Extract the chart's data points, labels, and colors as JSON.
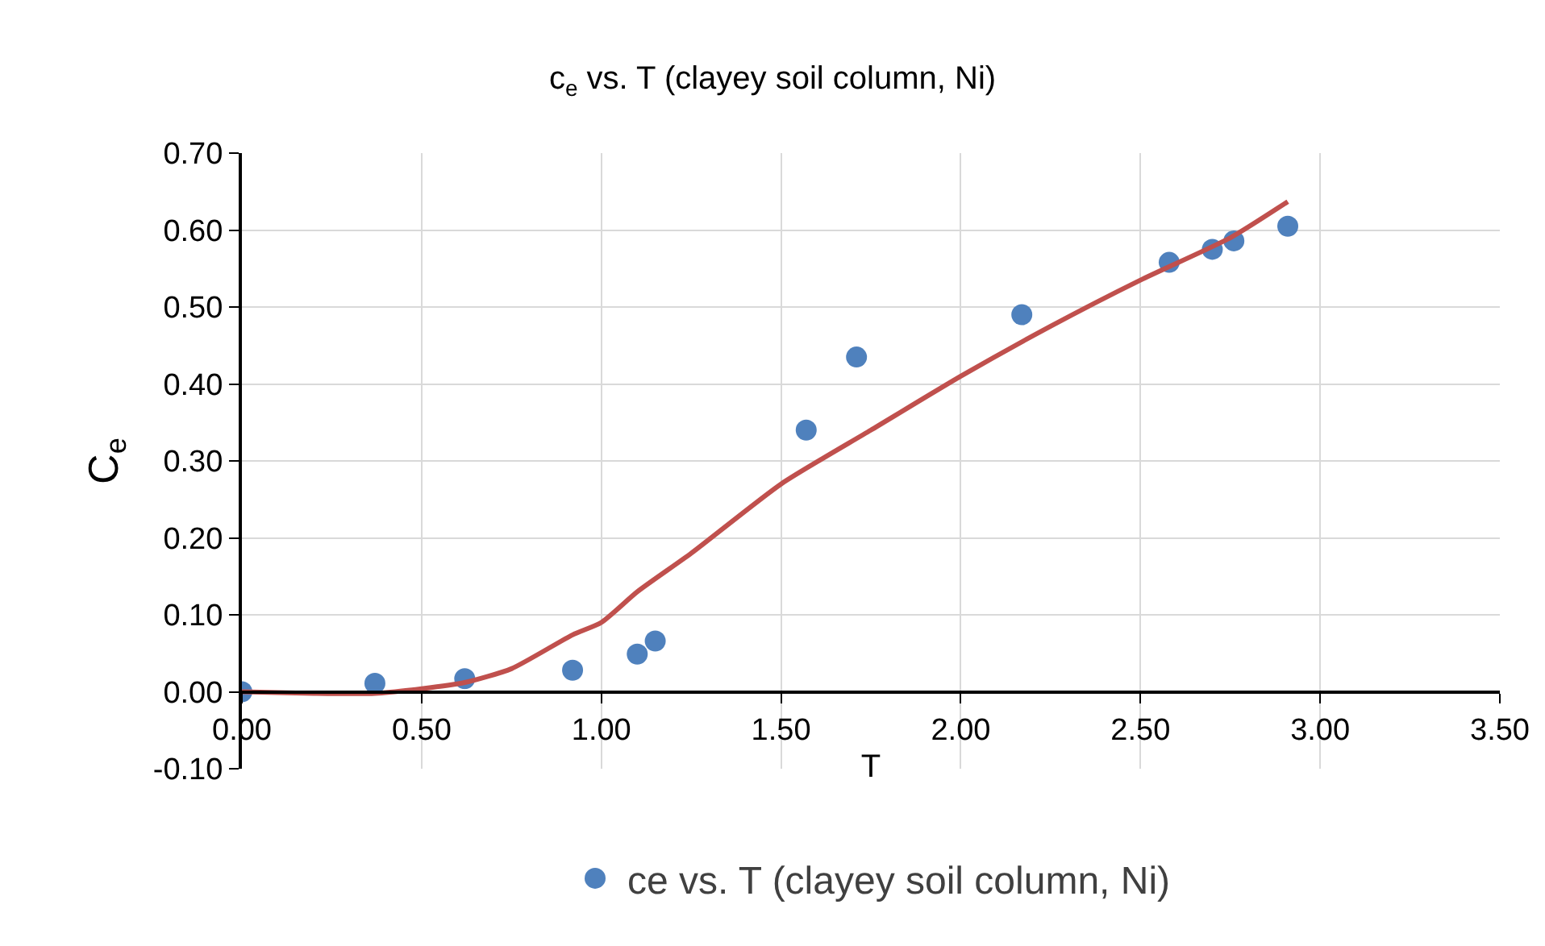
{
  "chart_data": {
    "type": "scatter",
    "title": "c$_{e}$ vs. T (clayey soil column, Ni)",
    "xlabel": "T",
    "ylabel": "C$_{e}$",
    "xlim": [
      0,
      3.5
    ],
    "xticks": [
      {
        "value": 0,
        "label": "0.00"
      },
      {
        "value": 0.5,
        "label": "0.50"
      },
      {
        "value": 1,
        "label": "1.00"
      },
      {
        "value": 1.5,
        "label": "1.50"
      },
      {
        "value": 2,
        "label": "2.00"
      },
      {
        "value": 2.5,
        "label": "2.50"
      },
      {
        "value": 3,
        "label": "3.00"
      },
      {
        "value": 3.5,
        "label": "3.50"
      }
    ],
    "ylim": [
      -0.1,
      0.7
    ],
    "yticks": [
      {
        "value": -0.1,
        "label": "-0.10"
      },
      {
        "value": 0,
        "label": "0.00"
      },
      {
        "value": 0.1,
        "label": "0.10"
      },
      {
        "value": 0.2,
        "label": "0.20"
      },
      {
        "value": 0.3,
        "label": "0.30"
      },
      {
        "value": 0.4,
        "label": "0.40"
      },
      {
        "value": 0.5,
        "label": "0.50"
      },
      {
        "value": 0.6,
        "label": "0.60"
      },
      {
        "value": 0.7,
        "label": "0.70"
      }
    ],
    "grid": true,
    "legend": "bottom",
    "series": [
      {
        "marker": "circle",
        "name": "ce vs. T (clayey soil column, Ni)",
        "color": "#4f81bd",
        "x": [
          0,
          0.37,
          0.62,
          0.92,
          1.1,
          1.15,
          1.57,
          1.71,
          2.17,
          2.58,
          2.7,
          2.76,
          2.91
        ],
        "values": [
          0,
          0.011,
          0.017,
          0.028,
          0.049,
          0.066,
          0.34,
          0.435,
          0.49,
          0.558,
          0.575,
          0.586,
          0.605
        ]
      },
      {
        "type": "line",
        "marker": "none",
        "color": "#c0504d",
        "line_style": "solid",
        "x": [
          0,
          0.2,
          0.37,
          0.5,
          0.62,
          0.75,
          0.92,
          1.0,
          1.1,
          1.25,
          1.5,
          1.75,
          2.0,
          2.25,
          2.5,
          2.75,
          2.91
        ],
        "values": [
          0,
          -0.002,
          -0.002,
          0.004,
          0.012,
          0.03,
          0.074,
          0.09,
          0.13,
          0.18,
          0.27,
          0.34,
          0.41,
          0.475,
          0.535,
          0.59,
          0.637
        ]
      }
    ]
  }
}
